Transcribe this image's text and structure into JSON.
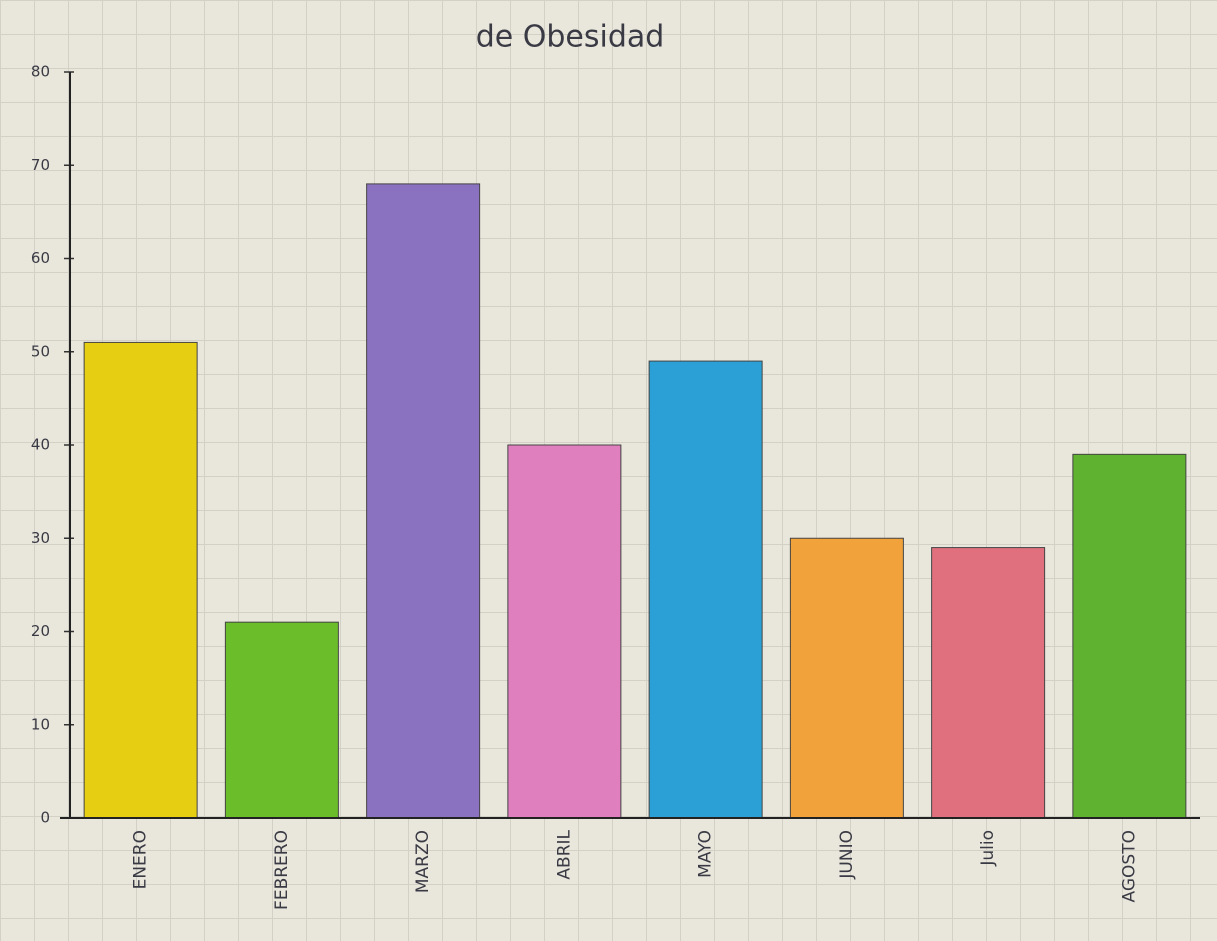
{
  "chart_data": {
    "type": "bar",
    "title": "de Obesidad",
    "categories": [
      "ENERO",
      "FEBRERO",
      "MARZO",
      "ABRIL",
      "MAYO",
      "JUNIO",
      "Julio",
      "AGOSTO"
    ],
    "values": [
      51,
      21,
      68,
      40,
      49,
      30,
      29,
      39
    ],
    "colors": [
      "#e6cf12",
      "#6cbd2a",
      "#8a72c0",
      "#df7fbd",
      "#2aa0d6",
      "#f2a23a",
      "#e0707e",
      "#5fb22f"
    ],
    "ylim": [
      0,
      80
    ],
    "yticks": [
      0,
      10,
      20,
      30,
      40,
      50,
      60,
      70,
      80
    ]
  }
}
